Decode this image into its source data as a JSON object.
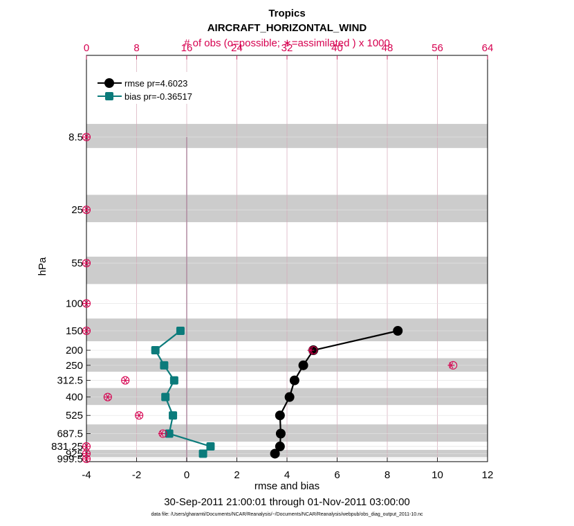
{
  "chart_data": {
    "type": "line",
    "title": "Tropics",
    "subtitle": "AIRCRAFT_HORIZONTAL_WIND",
    "top_axis_label": "# of obs (o=possible; ∗=assimilated ) x 1000",
    "xlabel": "rmse and bias",
    "ylabel": "hPa",
    "date_range": "30-Sep-2011 21:00:01 through 01-Nov-2011 03:00:00",
    "data_file": "data file: /Users/gharamti/Documents/NCAR/Reanalysis/~/Documents/NCAR/Reanalysis/webpub/obs_diag_output_2011-10.nc",
    "xlim": [
      -4,
      12
    ],
    "x_ticks": [
      "-4",
      "-2",
      "0",
      "2",
      "4",
      "6",
      "8",
      "10",
      "12"
    ],
    "top_xlim": [
      0,
      64
    ],
    "top_ticks": [
      "0",
      "8",
      "16",
      "24",
      "32",
      "40",
      "48",
      "56",
      "64"
    ],
    "levels": [
      8.5,
      25,
      55,
      100,
      150,
      200,
      250,
      312.5,
      400,
      525,
      687.5,
      831.25,
      925,
      999.5
    ],
    "level_labels": [
      "8.5",
      "25",
      "55",
      "100",
      "150",
      "200",
      "250",
      "312.5",
      "400",
      "525",
      "687.5",
      "831.25",
      "925",
      "999.5"
    ],
    "shaded_bands_hpa": [
      [
        7,
        10
      ],
      [
        20,
        30
      ],
      [
        50,
        75
      ],
      [
        125,
        175
      ],
      [
        225,
        275
      ],
      [
        350,
        450
      ],
      [
        600,
        775
      ],
      [
        875,
        975
      ]
    ],
    "series": [
      {
        "name": "rmse pr=4.6023",
        "color": "#000000",
        "marker": "circle",
        "points": [
          [
            150,
            8.42
          ],
          [
            200,
            5.05
          ],
          [
            250,
            4.65
          ],
          [
            312.5,
            4.3
          ],
          [
            400,
            4.1
          ],
          [
            525,
            3.72
          ],
          [
            687.5,
            3.75
          ],
          [
            831.25,
            3.72
          ],
          [
            925,
            3.52
          ]
        ]
      },
      {
        "name": "bias pr=-0.36517",
        "color": "#0b7b7b",
        "marker": "square",
        "points": [
          [
            150,
            -0.25
          ],
          [
            200,
            -1.25
          ],
          [
            250,
            -0.9
          ],
          [
            312.5,
            -0.5
          ],
          [
            400,
            -0.85
          ],
          [
            525,
            -0.55
          ],
          [
            687.5,
            -0.7
          ],
          [
            831.25,
            0.95
          ],
          [
            925,
            0.65
          ]
        ]
      }
    ],
    "obs_counts_thousands": {
      "levels": [
        8.5,
        25,
        55,
        100,
        150,
        200,
        250,
        312.5,
        400,
        525,
        687.5,
        831.25,
        925,
        999.5
      ],
      "possible": [
        0,
        0,
        0,
        0,
        0,
        36.2,
        58.5,
        6.2,
        3.4,
        8.4,
        12.2,
        0,
        0,
        0
      ],
      "assimilated": [
        0,
        0,
        0,
        0,
        0,
        35.8,
        58.2,
        6.2,
        3.4,
        8.4,
        12.0,
        0,
        0,
        0
      ]
    },
    "colors": {
      "rmse": "#000000",
      "bias": "#0b7b7b",
      "obs": "#d6004f",
      "band": "#cccccc",
      "zero_line": "#b08aa0"
    }
  }
}
